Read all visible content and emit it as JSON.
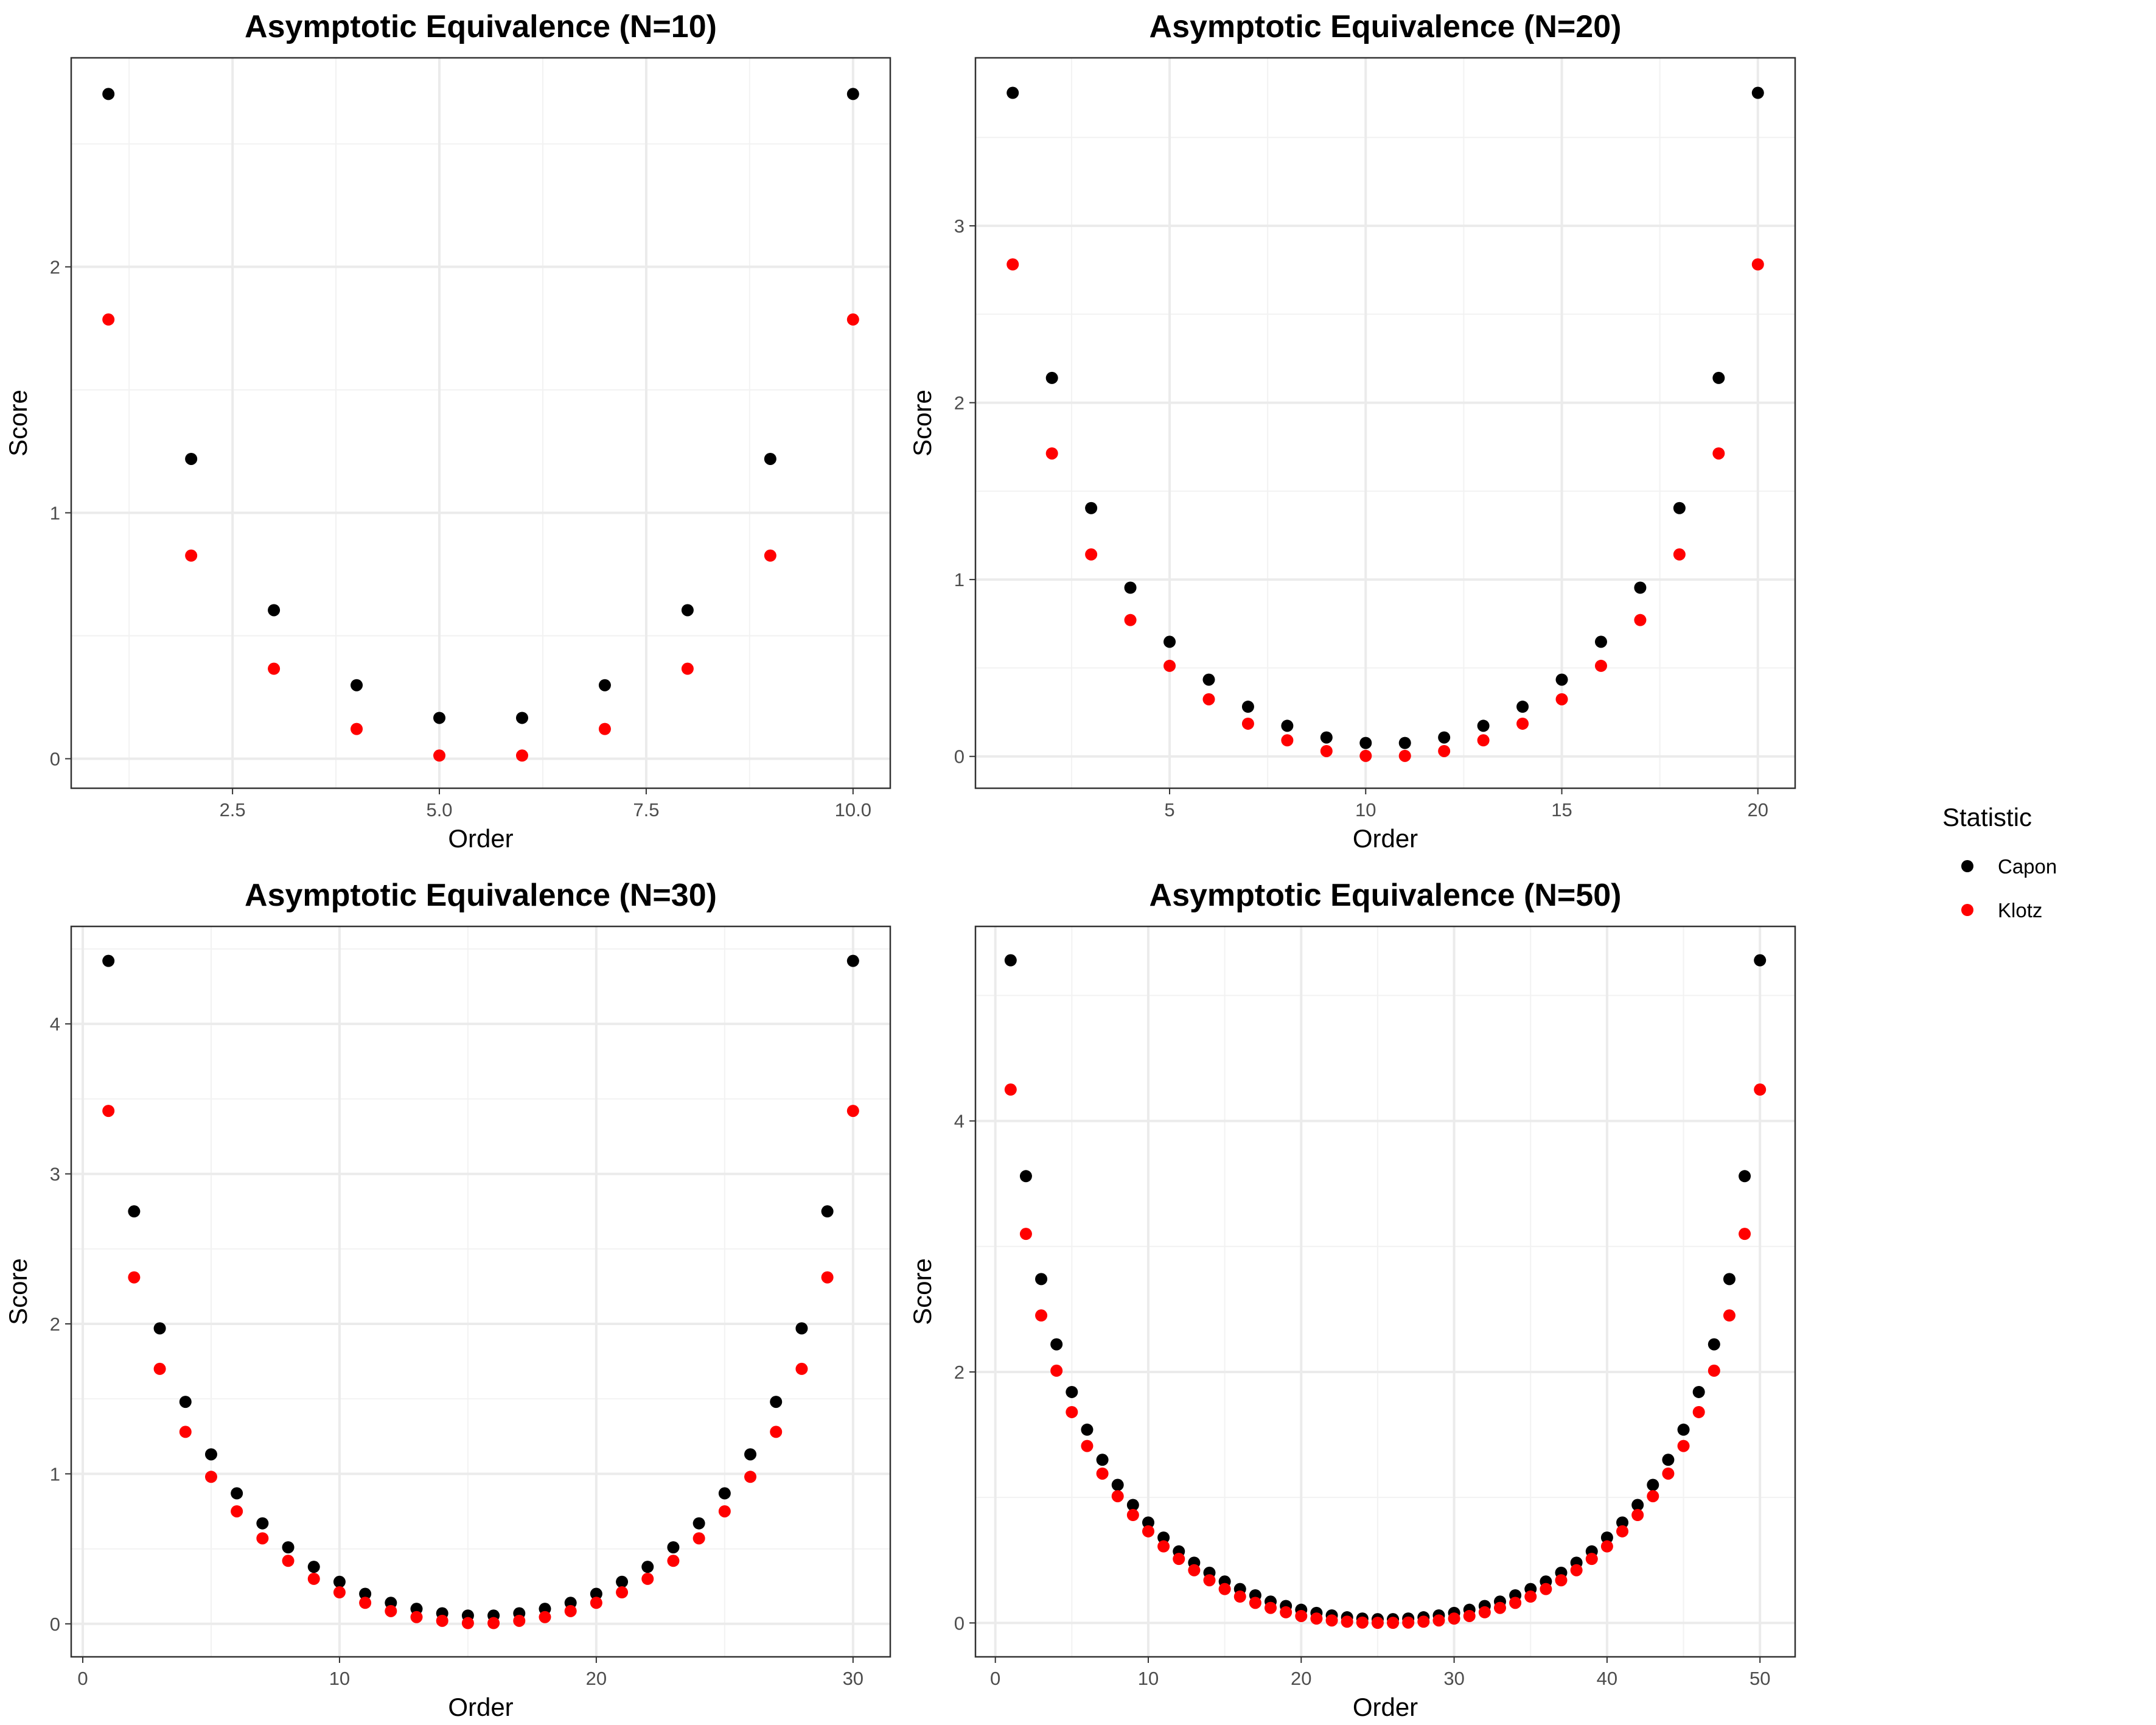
{
  "legend": {
    "title": "Statistic",
    "entries": [
      {
        "label": "Capon",
        "color": "#000000"
      },
      {
        "label": "Klotz",
        "color": "#ff0000"
      }
    ]
  },
  "chart_data": [
    {
      "type": "scatter",
      "title": "Asymptotic Equivalence (N=10)",
      "xlabel": "Order",
      "ylabel": "Score",
      "xlim": [
        0.55,
        10.45
      ],
      "ylim": [
        -0.12,
        2.85
      ],
      "x_ticks": [
        2.5,
        5.0,
        7.5,
        10.0
      ],
      "x_tick_labels": [
        "2.5",
        "5.0",
        "7.5",
        "10.0"
      ],
      "y_ticks": [
        0,
        1,
        2
      ],
      "y_tick_labels": [
        "0",
        "1",
        "2"
      ],
      "grid": true,
      "x": [
        1,
        2,
        3,
        4,
        5,
        6,
        7,
        8,
        9,
        10
      ],
      "series": [
        {
          "name": "Capon",
          "color": "#000000",
          "values": [
            2.703,
            1.219,
            0.604,
            0.299,
            0.166,
            0.166,
            0.299,
            0.604,
            1.219,
            2.703
          ]
        },
        {
          "name": "Klotz",
          "color": "#ff0000",
          "values": [
            1.786,
            0.826,
            0.366,
            0.121,
            0.013,
            0.013,
            0.121,
            0.366,
            0.826,
            1.786
          ]
        }
      ]
    },
    {
      "type": "scatter",
      "title": "Asymptotic Equivalence (N=20)",
      "xlabel": "Order",
      "ylabel": "Score",
      "xlim": [
        0.05,
        20.95
      ],
      "ylim": [
        -0.18,
        3.95
      ],
      "x_ticks": [
        5,
        10,
        15,
        20
      ],
      "x_tick_labels": [
        "5",
        "10",
        "15",
        "20"
      ],
      "y_ticks": [
        0,
        1,
        2,
        3
      ],
      "y_tick_labels": [
        "0",
        "1",
        "2",
        "3"
      ],
      "grid": true,
      "x": [
        1,
        2,
        3,
        4,
        5,
        6,
        7,
        8,
        9,
        10,
        11,
        12,
        13,
        14,
        15,
        16,
        17,
        18,
        19,
        20
      ],
      "series": [
        {
          "name": "Capon",
          "color": "#000000",
          "values": [
            3.752,
            2.14,
            1.404,
            0.954,
            0.648,
            0.434,
            0.281,
            0.173,
            0.107,
            0.076,
            0.076,
            0.107,
            0.173,
            0.281,
            0.434,
            0.648,
            0.954,
            1.404,
            2.14,
            3.752
          ]
        },
        {
          "name": "Klotz",
          "color": "#ff0000",
          "values": [
            2.782,
            1.713,
            1.142,
            0.771,
            0.512,
            0.323,
            0.185,
            0.091,
            0.03,
            0.003,
            0.003,
            0.03,
            0.091,
            0.185,
            0.323,
            0.512,
            0.771,
            1.142,
            1.713,
            2.782
          ]
        }
      ]
    },
    {
      "type": "scatter",
      "title": "Asymptotic Equivalence (N=30)",
      "xlabel": "Order",
      "ylabel": "Score",
      "xlim": [
        -0.45,
        31.45
      ],
      "ylim": [
        -0.22,
        4.65
      ],
      "x_ticks": [
        0,
        10,
        20,
        30
      ],
      "x_tick_labels": [
        "0",
        "10",
        "20",
        "30"
      ],
      "y_ticks": [
        0,
        1,
        2,
        3,
        4
      ],
      "y_tick_labels": [
        "0",
        "1",
        "2",
        "3",
        "4"
      ],
      "grid": true,
      "x": [
        1,
        2,
        3,
        4,
        5,
        6,
        7,
        8,
        9,
        10,
        11,
        12,
        13,
        14,
        15,
        16,
        17,
        18,
        19,
        20,
        21,
        22,
        23,
        24,
        25,
        26,
        27,
        28,
        29,
        30
      ],
      "series": [
        {
          "name": "Capon",
          "color": "#000000",
          "values": [
            4.42,
            2.75,
            1.97,
            1.48,
            1.13,
            0.87,
            0.67,
            0.51,
            0.38,
            0.28,
            0.2,
            0.14,
            0.1,
            0.07,
            0.055,
            0.055,
            0.07,
            0.1,
            0.14,
            0.2,
            0.28,
            0.38,
            0.51,
            0.67,
            0.87,
            1.13,
            1.48,
            1.97,
            2.75,
            4.42
          ]
        },
        {
          "name": "Klotz",
          "color": "#ff0000",
          "values": [
            3.42,
            2.31,
            1.7,
            1.28,
            0.98,
            0.75,
            0.57,
            0.42,
            0.3,
            0.21,
            0.14,
            0.085,
            0.045,
            0.02,
            0.005,
            0.005,
            0.02,
            0.045,
            0.085,
            0.14,
            0.21,
            0.3,
            0.42,
            0.57,
            0.75,
            0.98,
            1.28,
            1.7,
            2.31,
            3.42
          ]
        }
      ]
    },
    {
      "type": "scatter",
      "title": "Asymptotic Equivalence (N=50)",
      "xlabel": "Order",
      "ylabel": "Score",
      "xlim": [
        -1.3,
        52.3
      ],
      "ylim": [
        -0.27,
        5.55
      ],
      "x_ticks": [
        0,
        10,
        20,
        30,
        40,
        50
      ],
      "x_tick_labels": [
        "0",
        "10",
        "20",
        "30",
        "40",
        "50"
      ],
      "y_ticks": [
        0,
        2,
        4
      ],
      "y_tick_labels": [
        "0",
        "2",
        "4"
      ],
      "grid": true,
      "x": [
        1,
        2,
        3,
        4,
        5,
        6,
        7,
        8,
        9,
        10,
        11,
        12,
        13,
        14,
        15,
        16,
        17,
        18,
        19,
        20,
        21,
        22,
        23,
        24,
        25,
        26,
        27,
        28,
        29,
        30,
        31,
        32,
        33,
        34,
        35,
        36,
        37,
        38,
        39,
        40,
        41,
        42,
        43,
        44,
        45,
        46,
        47,
        48,
        49,
        50
      ],
      "series": [
        {
          "name": "Capon",
          "color": "#000000",
          "values": [
            5.28,
            3.56,
            2.74,
            2.22,
            1.84,
            1.54,
            1.3,
            1.1,
            0.94,
            0.8,
            0.68,
            0.57,
            0.48,
            0.4,
            0.33,
            0.27,
            0.22,
            0.17,
            0.135,
            0.105,
            0.08,
            0.06,
            0.045,
            0.035,
            0.03,
            0.03,
            0.035,
            0.045,
            0.06,
            0.08,
            0.105,
            0.135,
            0.17,
            0.22,
            0.27,
            0.33,
            0.4,
            0.48,
            0.57,
            0.68,
            0.8,
            0.94,
            1.1,
            1.3,
            1.54,
            1.84,
            2.22,
            2.74,
            3.56,
            5.28
          ]
        },
        {
          "name": "Klotz",
          "color": "#ff0000",
          "values": [
            4.25,
            3.1,
            2.45,
            2.01,
            1.68,
            1.41,
            1.19,
            1.01,
            0.86,
            0.73,
            0.61,
            0.51,
            0.42,
            0.34,
            0.27,
            0.21,
            0.16,
            0.12,
            0.085,
            0.055,
            0.035,
            0.02,
            0.01,
            0.003,
            0.001,
            0.001,
            0.003,
            0.01,
            0.02,
            0.035,
            0.055,
            0.085,
            0.12,
            0.16,
            0.21,
            0.27,
            0.34,
            0.42,
            0.51,
            0.61,
            0.73,
            0.86,
            1.01,
            1.19,
            1.41,
            1.68,
            2.01,
            2.45,
            3.1,
            4.25
          ]
        }
      ]
    }
  ]
}
